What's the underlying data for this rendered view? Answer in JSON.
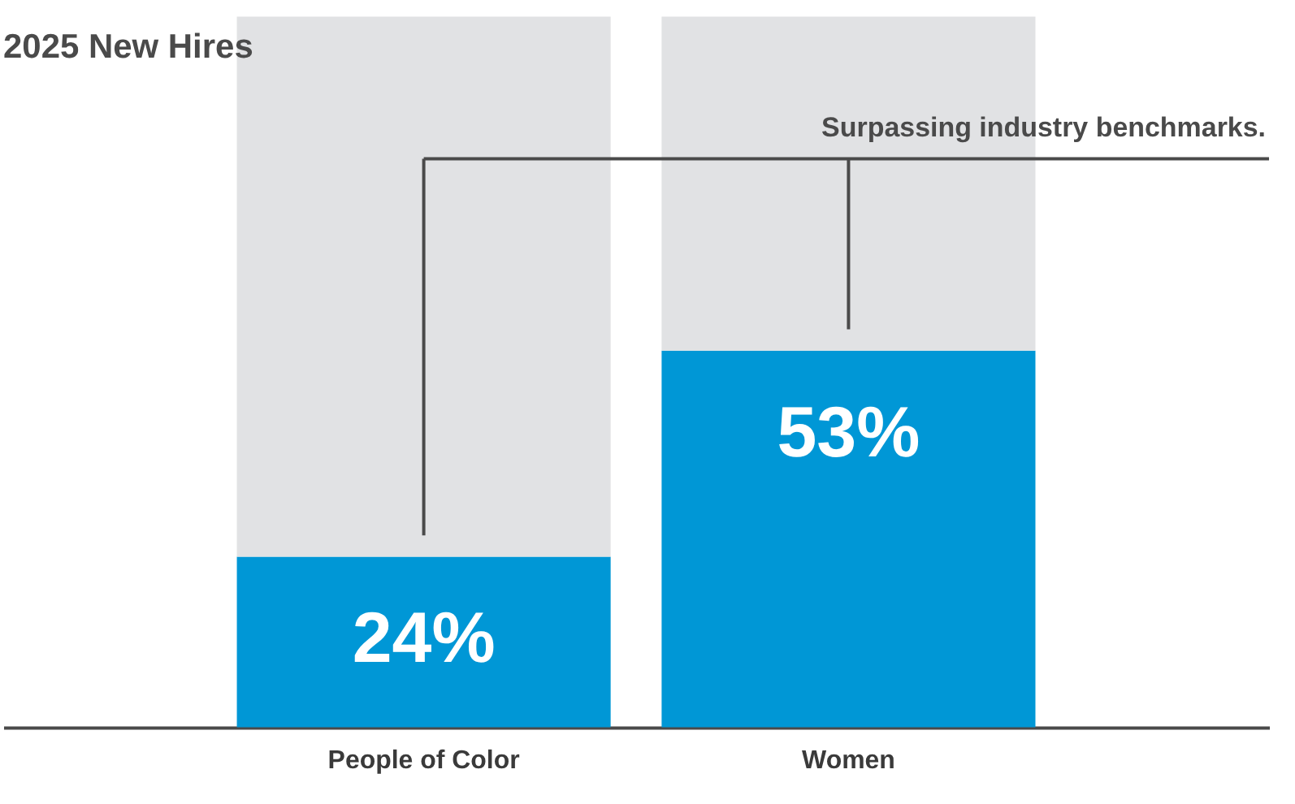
{
  "chart_data": {
    "type": "bar",
    "title": "2025 New Hires",
    "categories": [
      "People of Color",
      "Women"
    ],
    "stacked": true,
    "series": [
      {
        "color": "#0097d6",
        "values": [
          24,
          53
        ],
        "value_labels": [
          "24%",
          "53%"
        ]
      },
      {
        "color": "#e1e2e4",
        "values": [
          76,
          47
        ]
      }
    ],
    "ylim": [
      0,
      100
    ],
    "tick_labels": "x",
    "grid": false,
    "ref_lines": [
      {
        "axis": "y",
        "value": 80,
        "label": "Surpassing industry benchmarks.",
        "color": "#4a4a4a"
      }
    ]
  }
}
